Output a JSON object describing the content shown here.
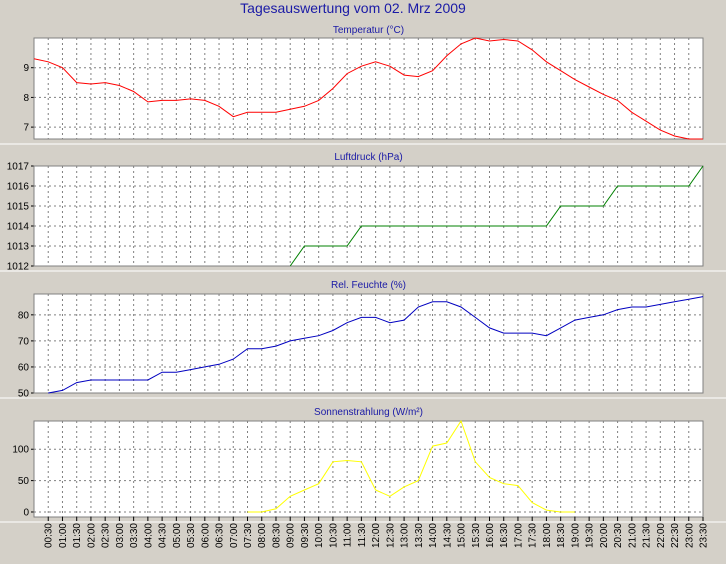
{
  "title": "Tagesauswertung vom 02. Mrz 2009",
  "time_labels": [
    "00:30",
    "01:00",
    "01:30",
    "02:00",
    "02:30",
    "03:00",
    "03:30",
    "04:00",
    "04:30",
    "05:00",
    "05:30",
    "06:00",
    "06:30",
    "07:00",
    "07:30",
    "08:00",
    "08:30",
    "09:00",
    "09:30",
    "10:00",
    "10:30",
    "11:00",
    "11:30",
    "12:00",
    "12:30",
    "13:00",
    "13:30",
    "14:00",
    "14:30",
    "15:00",
    "15:30",
    "16:00",
    "16:30",
    "17:00",
    "17:30",
    "18:00",
    "18:30",
    "19:00",
    "19:30",
    "20:00",
    "20:30",
    "21:00",
    "21:30",
    "22:00",
    "22:30",
    "23:00",
    "23:30"
  ],
  "colors": {
    "background": "#d4d0c8",
    "plot_bg": "#ffffff",
    "grid": "#808080",
    "title": "#1a1aa6",
    "temperature": "#ff0000",
    "pressure": "#008000",
    "humidity": "#0000c0",
    "solar": "#ffff00"
  },
  "chart_data": [
    {
      "type": "line",
      "title": "Temperatur (°C)",
      "x": [
        "00:00",
        "00:30",
        "01:00",
        "01:30",
        "02:00",
        "02:30",
        "03:00",
        "03:30",
        "04:00",
        "04:30",
        "05:00",
        "05:30",
        "06:00",
        "06:30",
        "07:00",
        "07:30",
        "08:00",
        "08:30",
        "09:00",
        "09:30",
        "10:00",
        "10:30",
        "11:00",
        "11:30",
        "12:00",
        "12:30",
        "13:00",
        "13:30",
        "14:00",
        "14:30",
        "15:00",
        "15:30",
        "16:00",
        "16:30",
        "17:00",
        "17:30",
        "18:00",
        "18:30",
        "19:00",
        "19:30",
        "20:00",
        "20:30",
        "21:00",
        "21:30",
        "22:00",
        "22:30",
        "23:00",
        "23:30"
      ],
      "values": [
        9.3,
        9.2,
        9.0,
        8.5,
        8.45,
        8.5,
        8.4,
        8.2,
        7.85,
        7.9,
        7.9,
        7.95,
        7.9,
        7.7,
        7.35,
        7.5,
        7.5,
        7.5,
        7.6,
        7.7,
        7.9,
        8.3,
        8.8,
        9.05,
        9.2,
        9.05,
        8.75,
        8.7,
        8.9,
        9.4,
        9.8,
        10.0,
        9.9,
        9.95,
        9.9,
        9.6,
        9.2,
        8.9,
        8.6,
        8.35,
        8.1,
        7.9,
        7.5,
        7.2,
        6.9,
        6.7,
        6.6,
        6.6
      ],
      "yticks": [
        7,
        8,
        9
      ],
      "ylim": [
        6.6,
        10.0
      ],
      "grid": true
    },
    {
      "type": "line",
      "title": "Luftdruck (hPa)",
      "x": [
        "09:00",
        "09:30",
        "10:00",
        "10:30",
        "11:00",
        "11:30",
        "12:00",
        "12:30",
        "13:00",
        "13:30",
        "14:00",
        "14:30",
        "15:00",
        "15:30",
        "16:00",
        "16:30",
        "17:00",
        "17:30",
        "18:00",
        "18:30",
        "19:00",
        "19:30",
        "20:00",
        "20:30",
        "21:00",
        "21:30",
        "22:00",
        "22:30",
        "23:00",
        "23:30"
      ],
      "values": [
        1012,
        1013,
        1013,
        1013,
        1013,
        1014,
        1014,
        1014,
        1014,
        1014,
        1014,
        1014,
        1014,
        1014,
        1014,
        1014,
        1014,
        1014,
        1014,
        1015,
        1015,
        1015,
        1015,
        1016,
        1016,
        1016,
        1016,
        1016,
        1016,
        1017
      ],
      "yticks": [
        1012,
        1013,
        1014,
        1015,
        1016,
        1017
      ],
      "ylim": [
        1012,
        1017
      ],
      "grid": true
    },
    {
      "type": "line",
      "title": "Rel. Feuchte (%)",
      "x": [
        "00:30",
        "01:00",
        "01:30",
        "02:00",
        "02:30",
        "03:00",
        "03:30",
        "04:00",
        "04:30",
        "05:00",
        "05:30",
        "06:00",
        "06:30",
        "07:00",
        "07:30",
        "08:00",
        "08:30",
        "09:00",
        "09:30",
        "10:00",
        "10:30",
        "11:00",
        "11:30",
        "12:00",
        "12:30",
        "13:00",
        "13:30",
        "14:00",
        "14:30",
        "15:00",
        "15:30",
        "16:00",
        "16:30",
        "17:00",
        "17:30",
        "18:00",
        "18:30",
        "19:00",
        "19:30",
        "20:00",
        "20:30",
        "21:00",
        "21:30",
        "22:00",
        "22:30",
        "23:00",
        "23:30"
      ],
      "values": [
        50,
        51,
        54,
        55,
        55,
        55,
        55,
        55,
        58,
        58,
        59,
        60,
        61,
        63,
        67,
        67,
        68,
        70,
        71,
        72,
        74,
        77,
        79,
        79,
        77,
        78,
        83,
        85,
        85,
        83,
        79,
        75,
        73,
        73,
        73,
        72,
        75,
        78,
        79,
        80,
        82,
        83,
        83,
        84,
        85,
        86,
        87
      ],
      "yticks": [
        50,
        60,
        70,
        80
      ],
      "ylim": [
        50,
        88
      ],
      "grid": true
    },
    {
      "type": "line",
      "title": "Sonnenstrahlung (W/m²)",
      "x": [
        "07:30",
        "08:00",
        "08:30",
        "09:00",
        "09:30",
        "10:00",
        "10:30",
        "11:00",
        "11:30",
        "12:00",
        "12:30",
        "13:00",
        "13:30",
        "14:00",
        "14:30",
        "15:00",
        "15:30",
        "16:00",
        "16:30",
        "17:00",
        "17:30",
        "18:00",
        "18:30",
        "19:00"
      ],
      "values": [
        0,
        0,
        5,
        25,
        35,
        45,
        80,
        82,
        80,
        35,
        25,
        40,
        50,
        105,
        110,
        145,
        80,
        55,
        45,
        42,
        15,
        3,
        0,
        0
      ],
      "yticks": [
        0,
        50,
        100
      ],
      "ylim": [
        -8,
        145
      ],
      "grid": true
    }
  ]
}
